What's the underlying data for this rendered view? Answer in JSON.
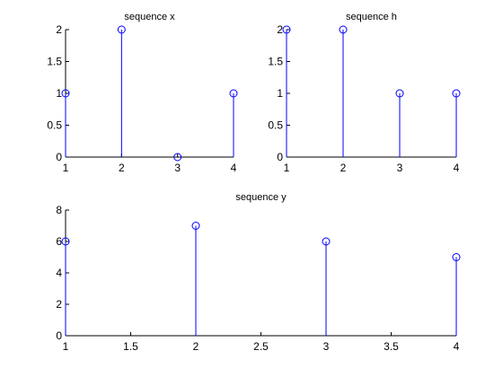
{
  "chart_data": [
    {
      "type": "stem",
      "title": "sequence x",
      "x": [
        1,
        2,
        3,
        4
      ],
      "values": [
        1,
        2,
        0,
        1
      ],
      "xlim": [
        1,
        4
      ],
      "ylim": [
        0,
        2
      ],
      "xticks": [
        1,
        2,
        3,
        4
      ],
      "yticks": [
        0,
        0.5,
        1,
        1.5,
        2
      ],
      "xlabel": "",
      "ylabel": "",
      "grid": false,
      "color": "#0000ff"
    },
    {
      "type": "stem",
      "title": "sequence h",
      "x": [
        1,
        2,
        3,
        4
      ],
      "values": [
        2,
        2,
        1,
        1
      ],
      "xlim": [
        1,
        4
      ],
      "ylim": [
        0,
        2
      ],
      "xticks": [
        1,
        2,
        3,
        4
      ],
      "yticks": [
        0,
        0.5,
        1,
        1.5,
        2
      ],
      "xlabel": "",
      "ylabel": "",
      "grid": false,
      "color": "#0000ff"
    },
    {
      "type": "stem",
      "title": "sequence y",
      "x": [
        1,
        2,
        3,
        4
      ],
      "values": [
        6,
        7,
        6,
        5
      ],
      "xlim": [
        1,
        4
      ],
      "ylim": [
        0,
        8
      ],
      "xticks": [
        1,
        1.5,
        2,
        2.5,
        3,
        3.5,
        4
      ],
      "yticks": [
        0,
        2,
        4,
        6,
        8
      ],
      "xlabel": "",
      "ylabel": "",
      "grid": false,
      "color": "#0000ff"
    }
  ]
}
